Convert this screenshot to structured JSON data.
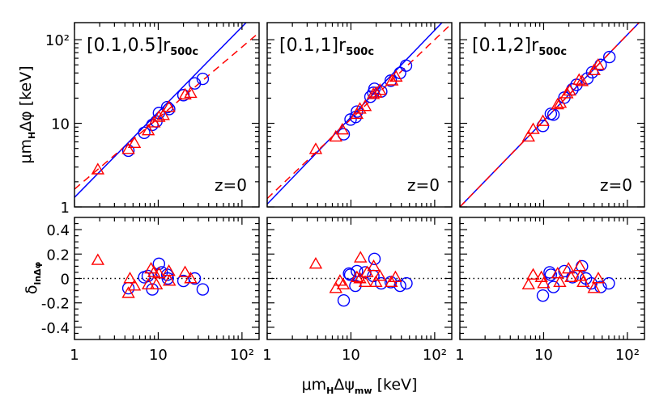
{
  "colors": {
    "blue": "#0000ff",
    "red": "#ff0000",
    "axis": "#000000"
  },
  "labels": {
    "top_ylabel_main": "μm",
    "top_ylabel_sub": "H",
    "top_ylabel_rest": "Δφ  [keV]",
    "bottom_ylabel_main": "δ",
    "bottom_ylabel_sub": "lnΔφ",
    "xlabel_main": "μm",
    "xlabel_sub1": "H",
    "xlabel_mid": "Δψ",
    "xlabel_sub2": "mw",
    "xlabel_rest": " [keV]"
  },
  "chart_data": [
    {
      "type": "scatter",
      "panel": "top",
      "range_label": "[0.1,0.5]r",
      "range_sub": "500c",
      "redshift_label": "z=0",
      "xscale": "log",
      "yscale": "log",
      "xlim": [
        1,
        160
      ],
      "ylim": [
        1,
        160
      ],
      "xticks": [
        "1",
        "10",
        "10²"
      ],
      "yticks": [
        "1",
        "10",
        "10²"
      ],
      "blue_circles": [
        [
          4.4,
          4.7
        ],
        [
          6.8,
          7.7
        ],
        [
          8.5,
          9.6
        ],
        [
          10.2,
          13.3
        ],
        [
          12.8,
          15.6
        ],
        [
          13.5,
          14.8
        ],
        [
          9.5,
          10.5
        ],
        [
          20,
          21.7
        ],
        [
          27.3,
          30
        ],
        [
          34,
          34
        ]
      ],
      "red_triangles": [
        [
          1.9,
          2.8
        ],
        [
          4.4,
          4.9
        ],
        [
          5.2,
          5.8
        ],
        [
          7.6,
          8.2
        ],
        [
          8.9,
          10.2
        ],
        [
          10.2,
          11.9
        ],
        [
          11.5,
          12.5
        ],
        [
          13.4,
          15.6
        ],
        [
          20.9,
          22
        ],
        [
          24.4,
          23
        ]
      ],
      "fit_lines": [
        {
          "color": "blue",
          "style": "solid",
          "y_at_x1": 1.3,
          "slope": 1.02
        },
        {
          "color": "red",
          "style": "dashed",
          "y_at_x1": 1.63,
          "slope": 0.85
        }
      ]
    },
    {
      "type": "scatter",
      "panel": "top",
      "range_label": "[0.1,1]r",
      "range_sub": "500c",
      "redshift_label": "z=0",
      "xscale": "log",
      "yscale": "log",
      "xlim": [
        1,
        160
      ],
      "ylim": [
        1,
        160
      ],
      "xticks": [
        "1",
        "10",
        "10²"
      ],
      "yticks": [
        "1",
        "10",
        "10²"
      ],
      "blue_circles": [
        [
          8.2,
          7.4
        ],
        [
          9.9,
          11.1
        ],
        [
          11.4,
          11.9
        ],
        [
          11.8,
          13.8
        ],
        [
          17.1,
          20.8
        ],
        [
          18.5,
          23.2
        ],
        [
          19.1,
          25.9
        ],
        [
          23,
          24
        ],
        [
          29.9,
          32.4
        ],
        [
          38.6,
          40
        ],
        [
          45.5,
          49
        ]
      ],
      "red_triangles": [
        [
          3.8,
          4.9
        ],
        [
          6.6,
          6.9
        ],
        [
          7.9,
          8.4
        ],
        [
          11.8,
          12.9
        ],
        [
          12.8,
          14.9
        ],
        [
          14.8,
          16
        ],
        [
          18.5,
          22.3
        ],
        [
          19.9,
          23.2
        ],
        [
          22.2,
          25
        ],
        [
          30.9,
          32.4
        ],
        [
          34.6,
          36
        ]
      ],
      "fit_lines": [
        {
          "color": "blue",
          "style": "solid",
          "y_at_x1": 1.08,
          "slope": 1.04
        },
        {
          "color": "red",
          "style": "dashed",
          "y_at_x1": 1.26,
          "slope": 0.95
        }
      ]
    },
    {
      "type": "scatter",
      "panel": "top",
      "range_label": "[0.1,2]r",
      "range_sub": "500c",
      "redshift_label": "z=0",
      "xscale": "log",
      "yscale": "log",
      "xlim": [
        1,
        160
      ],
      "ylim": [
        1,
        160
      ],
      "xticks": [
        "1",
        "10",
        "10²"
      ],
      "yticks": [
        "1",
        "10",
        "10²"
      ],
      "blue_circles": [
        [
          9.8,
          9.3
        ],
        [
          12.2,
          13
        ],
        [
          13.1,
          12.7
        ],
        [
          17.7,
          20.3
        ],
        [
          22.1,
          25.5
        ],
        [
          24.7,
          28.9
        ],
        [
          33.3,
          34.4
        ],
        [
          38,
          40.8
        ],
        [
          48,
          50
        ],
        [
          61,
          62
        ]
      ],
      "red_triangles": [
        [
          6.6,
          6.9
        ],
        [
          7.5,
          8.5
        ],
        [
          9.8,
          10.6
        ],
        [
          14.7,
          16.8
        ],
        [
          15.8,
          17.5
        ],
        [
          19,
          22.7
        ],
        [
          20.5,
          24.5
        ],
        [
          26.5,
          33
        ],
        [
          28.7,
          31.8
        ],
        [
          40,
          43
        ],
        [
          44.8,
          49.8
        ]
      ],
      "fit_lines": [
        {
          "color": "blue",
          "style": "solid",
          "y_at_x1": 1.0,
          "slope": 1.03
        },
        {
          "color": "red",
          "style": "dashed",
          "y_at_x1": 1.0,
          "slope": 1.03
        }
      ]
    },
    {
      "type": "scatter",
      "panel": "bottom",
      "xscale": "log",
      "xlim": [
        1,
        160
      ],
      "ylim": [
        -0.5,
        0.5
      ],
      "xticks": [
        "1",
        "10",
        "10²"
      ],
      "yticks": [
        "0.4",
        "0.2",
        "0",
        "-0.2",
        "-0.4"
      ],
      "reference_line": 0,
      "blue_circles": [
        [
          4.4,
          -0.08
        ],
        [
          6.8,
          0.01
        ],
        [
          7.5,
          0.02
        ],
        [
          8.5,
          -0.09
        ],
        [
          10.2,
          0.12
        ],
        [
          11,
          0.05
        ],
        [
          12.8,
          0.03
        ],
        [
          13,
          0.0
        ],
        [
          20,
          -0.02
        ],
        [
          27.3,
          0.0
        ],
        [
          34,
          -0.09
        ]
      ],
      "red_triangles": [
        [
          1.9,
          0.15
        ],
        [
          4.4,
          -0.12
        ],
        [
          4.6,
          0.0
        ],
        [
          5.2,
          -0.06
        ],
        [
          7.6,
          -0.05
        ],
        [
          8.2,
          0.08
        ],
        [
          8.9,
          0.05
        ],
        [
          9.5,
          -0.05
        ],
        [
          10.2,
          0.04
        ],
        [
          13.4,
          0.06
        ],
        [
          13.6,
          -0.02
        ],
        [
          20.9,
          0.05
        ],
        [
          24.4,
          0.0
        ]
      ]
    },
    {
      "type": "scatter",
      "panel": "bottom",
      "xscale": "log",
      "xlim": [
        1,
        160
      ],
      "ylim": [
        -0.5,
        0.5
      ],
      "xticks": [
        "1",
        "10",
        "10²"
      ],
      "yticks": [
        "0.4",
        "0.2",
        "0",
        "-0.2",
        "-0.4"
      ],
      "reference_line": 0,
      "blue_circles": [
        [
          8.2,
          -0.18
        ],
        [
          9.5,
          0.04
        ],
        [
          9.8,
          0.03
        ],
        [
          11.3,
          -0.06
        ],
        [
          11.8,
          0.06
        ],
        [
          14.8,
          0.05
        ],
        [
          18.5,
          0.02
        ],
        [
          19.1,
          0.16
        ],
        [
          23,
          -0.04
        ],
        [
          29.9,
          -0.03
        ],
        [
          38.6,
          -0.06
        ],
        [
          46,
          -0.04
        ]
      ],
      "red_triangles": [
        [
          3.8,
          0.12
        ],
        [
          6.6,
          -0.08
        ],
        [
          7.4,
          -0.02
        ],
        [
          8.1,
          -0.05
        ],
        [
          11.8,
          0.01
        ],
        [
          12.8,
          0.0
        ],
        [
          13,
          0.17
        ],
        [
          14.8,
          -0.03
        ],
        [
          15.6,
          0.05
        ],
        [
          18.7,
          0.1
        ],
        [
          19.9,
          -0.03
        ],
        [
          22.2,
          0.02
        ],
        [
          30.3,
          -0.03
        ],
        [
          34,
          0.01
        ]
      ]
    },
    {
      "type": "scatter",
      "panel": "bottom",
      "xscale": "log",
      "xlim": [
        1,
        160
      ],
      "ylim": [
        -0.5,
        0.5
      ],
      "xticks": [
        "1",
        "10",
        "10²"
      ],
      "yticks": [
        "0.4",
        "0.2",
        "0",
        "-0.2",
        "-0.4"
      ],
      "reference_line": 0,
      "blue_circles": [
        [
          9.8,
          -0.14
        ],
        [
          11.8,
          0.05
        ],
        [
          12.2,
          0.03
        ],
        [
          13.1,
          -0.07
        ],
        [
          17.7,
          0.06
        ],
        [
          22.1,
          0.01
        ],
        [
          28.7,
          0.1
        ],
        [
          32,
          0.0
        ],
        [
          37,
          -0.04
        ],
        [
          48,
          -0.07
        ],
        [
          60,
          -0.04
        ]
      ],
      "red_triangles": [
        [
          6.6,
          -0.05
        ],
        [
          7.5,
          0.03
        ],
        [
          9.4,
          0.01
        ],
        [
          10,
          -0.04
        ],
        [
          14.7,
          0.04
        ],
        [
          15.6,
          -0.03
        ],
        [
          19.8,
          0.08
        ],
        [
          21.3,
          0.01
        ],
        [
          27,
          0.1
        ],
        [
          27.6,
          0.02
        ],
        [
          29.7,
          -0.03
        ],
        [
          40,
          -0.08
        ],
        [
          45,
          0.0
        ]
      ]
    }
  ]
}
